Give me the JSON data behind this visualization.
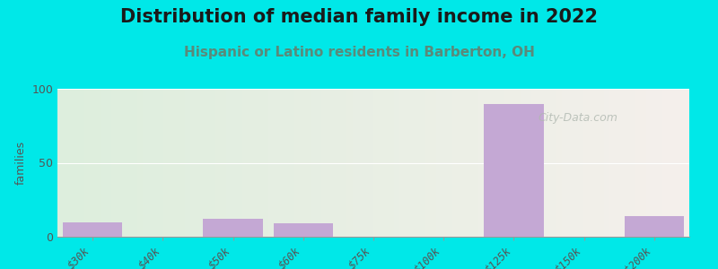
{
  "title": "Distribution of median family income in 2022",
  "subtitle": "Hispanic or Latino residents in Barberton, OH",
  "categories": [
    "$30k",
    "$40k",
    "$50k",
    "$60k",
    "$75k",
    "$100k",
    "$125k",
    "$150k",
    ">$200k"
  ],
  "values": [
    10,
    0,
    12,
    9,
    0,
    0,
    90,
    0,
    14
  ],
  "bar_color": "#c4a8d4",
  "ylabel": "families",
  "ylim": [
    0,
    100
  ],
  "yticks": [
    0,
    50,
    100
  ],
  "background_outer": "#00e8e8",
  "background_inner_left": "#ddeedd",
  "background_inner_right": "#f5f0ec",
  "title_fontsize": 15,
  "subtitle_fontsize": 11,
  "subtitle_color": "#5a8a7a",
  "watermark": "City-Data.com"
}
